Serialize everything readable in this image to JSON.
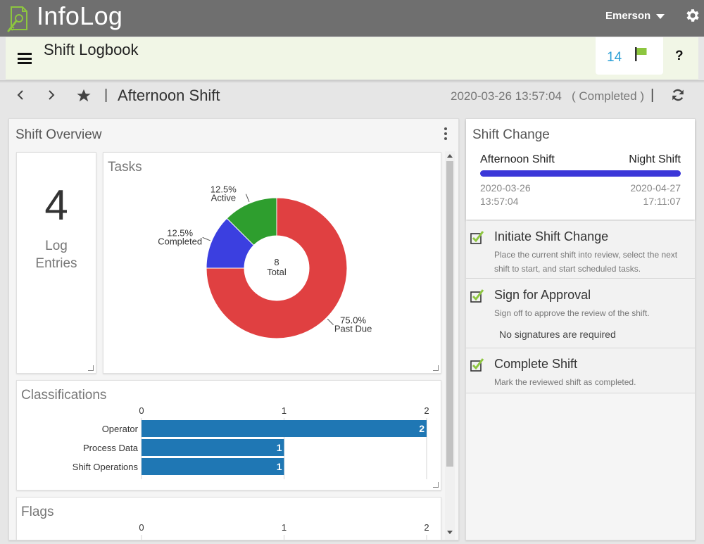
{
  "app": {
    "title": "InfoLog",
    "user": "Emerson"
  },
  "logbook": {
    "title": "Shift Logbook",
    "flag_count": "14",
    "help": "?"
  },
  "shift": {
    "separator": "|",
    "name": "Afternoon Shift",
    "timestamp": "2020-03-26 13:57:04",
    "status": "( Completed )"
  },
  "overview": {
    "title": "Shift Overview",
    "log_entries": {
      "count": "4",
      "label_line1": "Log",
      "label_line2": "Entries"
    },
    "tasks": {
      "title": "Tasks",
      "center_value": "8",
      "center_label": "Total"
    },
    "classifications": {
      "title": "Classifications"
    },
    "flags": {
      "title": "Flags"
    }
  },
  "chart_data": [
    {
      "type": "pie",
      "title": "Tasks",
      "total": 8,
      "slices": [
        {
          "label": "Past Due",
          "value": 6,
          "percent": "75.0%",
          "color": "#e04041"
        },
        {
          "label": "Completed",
          "value": 1,
          "percent": "12.5%",
          "color": "#3b3fe0"
        },
        {
          "label": "Active",
          "value": 1,
          "percent": "12.5%",
          "color": "#2e9e2e"
        }
      ]
    },
    {
      "type": "bar",
      "orientation": "horizontal",
      "title": "Classifications",
      "categories": [
        "Operator",
        "Process Data",
        "Shift Operations"
      ],
      "values": [
        2,
        1,
        1
      ],
      "ticks": [
        "0",
        "1",
        "2"
      ],
      "xlim": [
        0,
        2
      ],
      "color": "#1f77b4"
    },
    {
      "type": "bar",
      "orientation": "horizontal",
      "title": "Flags",
      "ticks": [
        "0",
        "1",
        "2"
      ],
      "xlim": [
        0,
        2
      ]
    }
  ],
  "shift_change": {
    "title": "Shift Change",
    "from": {
      "name": "Afternoon Shift",
      "date": "2020-03-26",
      "time": "13:57:04"
    },
    "to": {
      "name": "Night Shift",
      "date": "2020-04-27",
      "time": "17:11:07"
    },
    "bar_color": "#3b37d8",
    "steps": [
      {
        "title": "Initiate Shift Change",
        "desc": "Place the current shift into review, select the next shift to start, and start scheduled tasks."
      },
      {
        "title": "Sign for Approval",
        "desc": "Sign off to approve the review of the shift.",
        "note": "No signatures are required"
      },
      {
        "title": "Complete Shift",
        "desc": "Mark the reviewed shift as completed."
      }
    ]
  },
  "icons": {
    "logo": "infolog-logo-icon",
    "settings": "gear-icon",
    "menu": "hamburger-icon",
    "flag": "flag-icon",
    "prev": "chevron-left-icon",
    "next": "chevron-right-icon",
    "favorite": "star-icon",
    "refresh": "refresh-icon",
    "check": "checkbox-checked-icon"
  }
}
